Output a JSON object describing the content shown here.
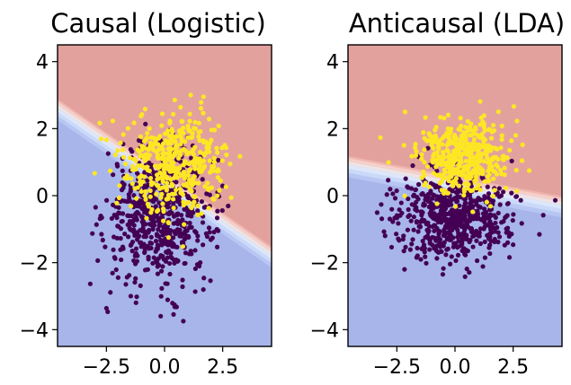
{
  "colors": {
    "region_pos": "#e3a19e",
    "region_neg": "#a7b5ea",
    "band": [
      "#b7c6f3",
      "#cbd9f8",
      "#dde7fb",
      "#efe4e3",
      "#f6cfc9",
      "#efb7b0"
    ],
    "class1": "#fde725",
    "class0": "#440154"
  },
  "chart_data": [
    {
      "type": "scatter",
      "title": "Causal (Logistic)",
      "xlim": [
        -4.6,
        4.6
      ],
      "ylim": [
        -4.5,
        4.5
      ],
      "xticks": [
        -2.5,
        0.0,
        2.5
      ],
      "xtick_labels": [
        "−2.5",
        "0.0",
        "2.5"
      ],
      "yticks": [
        4,
        2,
        0,
        -2,
        -4
      ],
      "ytick_labels": [
        "4",
        "2",
        "0",
        "−2",
        "−4"
      ],
      "decision_boundary": {
        "y_at_xmin": 2.8,
        "y_at_xmax": -1.6
      },
      "series": [
        {
          "class": 1,
          "center": [
            0.5,
            1.0
          ],
          "spread": [
            1.1,
            0.75
          ],
          "n": 420
        },
        {
          "class": 0,
          "center": [
            -0.2,
            -0.6
          ],
          "spread": [
            1.15,
            1.0
          ],
          "n": 620
        }
      ]
    },
    {
      "type": "scatter",
      "title": "Anticausal (LDA)",
      "xlim": [
        -4.6,
        4.6
      ],
      "ylim": [
        -4.5,
        4.5
      ],
      "xticks": [
        -2.5,
        0.0,
        2.5
      ],
      "xtick_labels": [
        "−2.5",
        "0.0",
        "2.5"
      ],
      "yticks": [
        4,
        2,
        0,
        -2,
        -4
      ],
      "ytick_labels": [
        "4",
        "2",
        "0",
        "−2",
        "−4"
      ],
      "decision_boundary": {
        "y_at_xmin": 1.1,
        "y_at_xmax": -0.1
      },
      "series": [
        {
          "class": 1,
          "center": [
            0.4,
            1.2
          ],
          "spread": [
            1.0,
            0.55
          ],
          "n": 420
        },
        {
          "class": 0,
          "center": [
            0.0,
            -0.6
          ],
          "spread": [
            1.2,
            0.65
          ],
          "n": 600
        }
      ]
    }
  ]
}
